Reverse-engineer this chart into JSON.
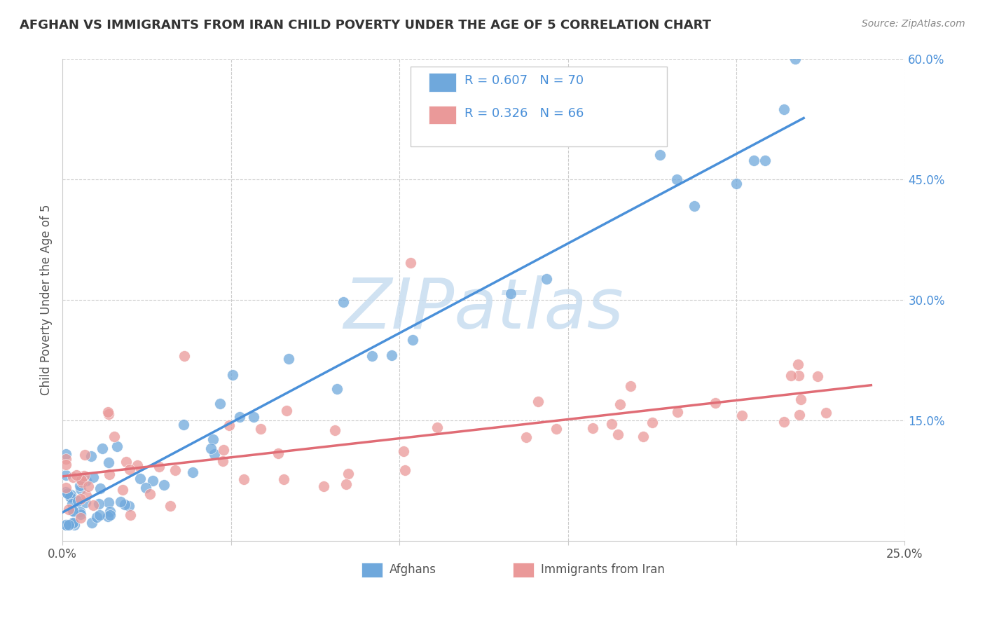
{
  "title": "AFGHAN VS IMMIGRANTS FROM IRAN CHILD POVERTY UNDER THE AGE OF 5 CORRELATION CHART",
  "source": "Source: ZipAtlas.com",
  "ylabel": "Child Poverty Under the Age of 5",
  "xlabel_afghans": "Afghans",
  "xlabel_iran": "Immigrants from Iran",
  "xlim": [
    0.0,
    0.25
  ],
  "ylim": [
    0.0,
    0.6
  ],
  "afghans_R": 0.607,
  "afghans_N": 70,
  "iran_R": 0.326,
  "iran_N": 66,
  "afghan_color": "#6fa8dc",
  "iran_color": "#ea9999",
  "afghan_line_color": "#4a90d9",
  "iran_line_color": "#e06c75",
  "watermark_color": "#c8ddf0",
  "grid_color": "#cccccc",
  "title_color": "#333333",
  "source_color": "#888888",
  "label_color": "#555555",
  "tick_color_right": "#4a90d9"
}
